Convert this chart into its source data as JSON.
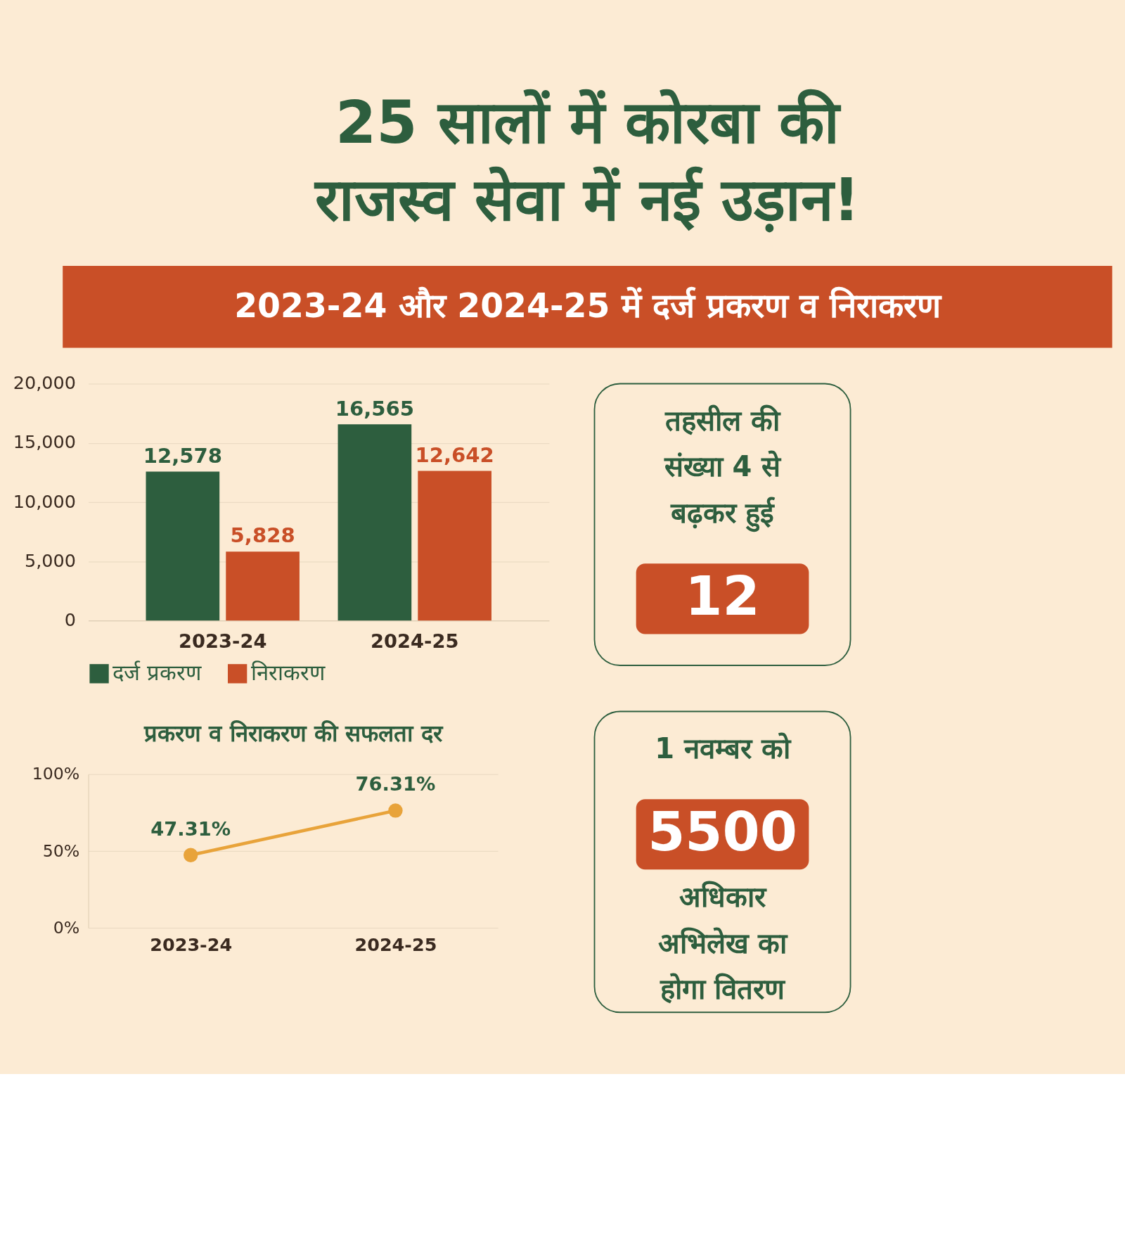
{
  "chart_data": [
    {
      "type": "bar",
      "title": "25 सालों में कोरबा की राजस्व सेवा में नई उड़ान!",
      "subtitle": "2023-24 और 2024-25 में दर्ज प्रकरण व निराकरण",
      "categories": [
        "2023-24",
        "2024-25"
      ],
      "series": [
        {
          "name": "दर्ज प्रकरण",
          "color": "#2d5e3e",
          "values": [
            12578,
            16565
          ],
          "value_labels": [
            "12,578",
            "16,565"
          ]
        },
        {
          "name": "निराकरण",
          "color": "#c94f27",
          "values": [
            5828,
            12642
          ],
          "value_labels": [
            "5,828",
            "12,642"
          ]
        }
      ],
      "ylim": [
        0,
        20000
      ],
      "yticks": [
        0,
        {
          "value": 5000,
          "label": "5,000"
        },
        {
          "value": 10000,
          "label": "10,000"
        },
        {
          "value": 15000,
          "label": "15,000"
        },
        {
          "value": 20000,
          "label": "20,000"
        }
      ],
      "grid": "y",
      "legend": "bottom"
    },
    {
      "type": "line",
      "title": "प्रकरण व निराकरण की सफलता दर",
      "categories": [
        "2023-24",
        "2024-25"
      ],
      "series": [
        {
          "color": "#e8a33a",
          "values": [
            47.31,
            76.31
          ],
          "value_labels": [
            "47.31%",
            "76.31%"
          ]
        }
      ],
      "ylim": [
        0,
        100
      ],
      "yticks": [
        {
          "value": 0,
          "label": "0%"
        },
        {
          "value": 50,
          "label": "50%"
        },
        {
          "value": 100,
          "label": "100%"
        }
      ],
      "grid": "y",
      "marker": "circle"
    },
    {
      "type": "other",
      "title": "तहसील की संख्या 4 से बढ़कर हुई",
      "values": [
        12
      ],
      "color": "#c94f27",
      "data_labels": true
    },
    {
      "type": "other",
      "title": "1 नवम्बर को",
      "values": [
        5500
      ],
      "color": "#c94f27",
      "data_labels": true,
      "annotations": [
        "अधिकार",
        "अभिलेख का",
        "होगा वितरण"
      ]
    }
  ]
}
